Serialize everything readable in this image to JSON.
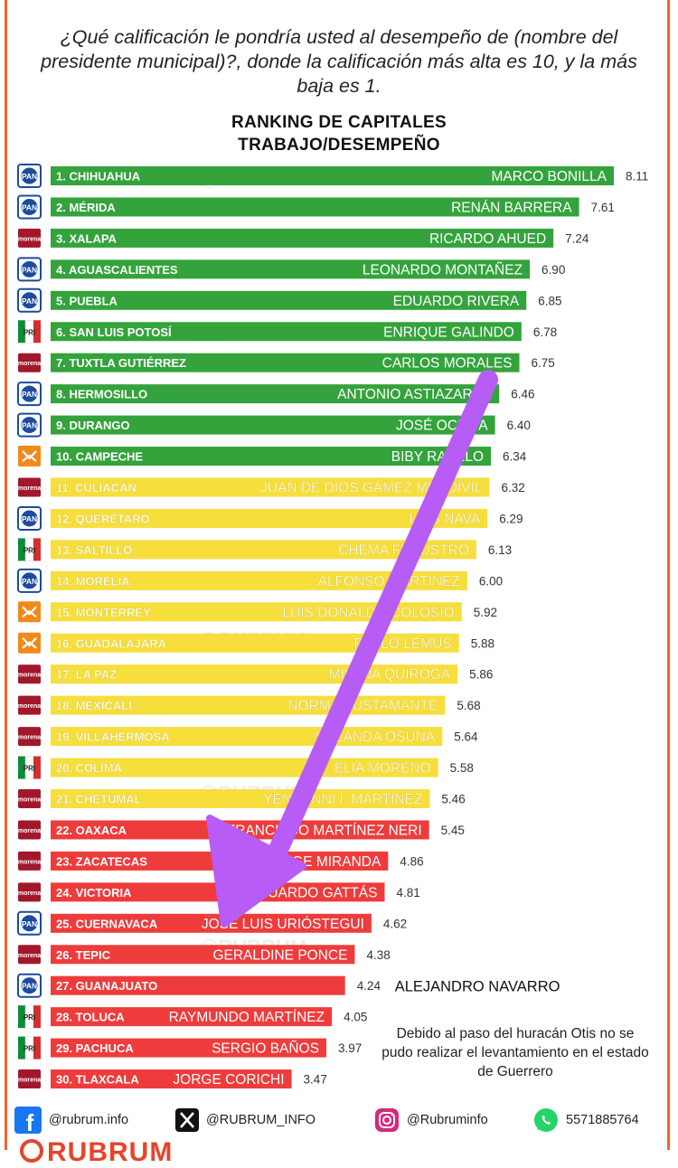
{
  "question": "¿Qué calificación le pondría usted al desempeño de (nombre del presidente municipal)?, donde la calificación más alta es 10, y la más baja es 1.",
  "title_line1": "RANKING DE CAPITALES",
  "title_line2": "TRABAJO/DESEMPEÑO",
  "outside_name_last_note": "ALEJANDRO NAVARRO",
  "note": "Debido al paso del huracán Otis no se pudo realizar el levantamiento en el estado de Guerrero",
  "watermark": "@RUBRUM",
  "colors": {
    "green": "#34a33c",
    "yellow": "#f6de3c",
    "red": "#ee3c3c",
    "frame": "#f2642a",
    "arrow": "#b75cf5",
    "PAN": "#1d4b9e",
    "MORENA": "#a3172b",
    "PRI": "#0c8c3a",
    "MC": "#f08a1c"
  },
  "footer": {
    "facebook": "@rubrum.info",
    "x": "@RUBRUM_INFO",
    "instagram": "@Rubruminfo",
    "whatsapp": "5571885764",
    "brand": "RUBRUM"
  },
  "chart_data": {
    "type": "bar",
    "orientation": "horizontal",
    "title": "RANKING DE CAPITALES TRABAJO/DESEMPEÑO",
    "categories": [
      "1. CHIHUAHUA",
      "2. MÉRIDA",
      "3. XALAPA",
      "4. AGUASCALIENTES",
      "5. PUEBLA",
      "6. SAN LUIS POTOSÍ",
      "7. TUXTLA GUTIÉRREZ",
      "8. HERMOSILLO",
      "9. DURANGO",
      "10. CAMPECHE",
      "11. CULIACÁN",
      "12. QUERÉTARO",
      "13. SALTILLO",
      "14. MORELIA",
      "15. MONTERREY",
      "16. GUADALAJARA",
      "17. LA PAZ",
      "18. MEXICALI",
      "19. VILLAHERMOSA",
      "20. COLIMA",
      "21. CHETUMAL",
      "22. OAXACA",
      "23. ZACATECAS",
      "24. VICTORIA",
      "25. CUERNAVACA",
      "26. TEPIC",
      "27. GUANAJUATO",
      "28. TOLUCA",
      "29. PACHUCA",
      "30. TLAXCALA"
    ],
    "values": [
      8.11,
      7.61,
      7.24,
      6.9,
      6.85,
      6.78,
      6.75,
      6.46,
      6.4,
      6.34,
      6.32,
      6.29,
      6.13,
      6.0,
      5.92,
      5.88,
      5.86,
      5.68,
      5.64,
      5.58,
      5.46,
      5.45,
      4.86,
      4.81,
      4.62,
      4.38,
      4.24,
      4.05,
      3.97,
      3.47
    ],
    "value_labels": [
      "8.11",
      "7.61",
      "7.24",
      "6.90",
      "6.85",
      "6.78",
      "6.75",
      "6.46",
      "6.40",
      "6.34",
      "6.32",
      "6.29",
      "6.13",
      "6.00",
      "5.92",
      "5.88",
      "5.86",
      "5.68",
      "5.64",
      "5.58",
      "5.46",
      "5.45",
      "4.86",
      "4.81",
      "4.62",
      "4.38",
      "4.24",
      "4.05",
      "3.97",
      "3.47"
    ],
    "names": [
      "MARCO BONILLA",
      "RENÁN BARRERA",
      "RICARDO AHUED",
      "LEONARDO MONTAÑEZ",
      "EDUARDO RIVERA",
      "ENRIQUE GALINDO",
      "CARLOS MORALES",
      "ANTONIO ASTIAZARÁN",
      "JOSÉ OCHOA",
      "BIBY RABELO",
      "JUAN DE DIOS GÁMEZ MENDÍVIL",
      "LUIS NAVA",
      "CHEMA FRAUSTRO",
      "ALFONSO MARTÍNEZ",
      "LUIS DONALDO COLOSIO",
      "PABLO LEMUS",
      "MILENA QUIROGA",
      "NORMA BUSTAMANTE",
      "YOLANDA OSUNA",
      "ELIA MORENO",
      "YENSUNNI I. MARTÍNEZ",
      "FRANCISCO MARTÍNEZ NERI",
      "JORGE MIRANDA",
      "EDUARDO GATTÁS",
      "JOSÉ LUIS URIÓSTEGUI",
      "GERALDINE PONCE",
      "",
      "RAYMUNDO MARTÍNEZ",
      "SERGIO BAÑOS",
      "JORGE CORICHI"
    ],
    "parties": [
      "PAN",
      "PAN",
      "MORENA",
      "PAN",
      "PAN",
      "PRI",
      "MORENA",
      "PAN",
      "PAN",
      "MC",
      "MORENA",
      "PAN",
      "PRI",
      "PAN",
      "MC",
      "MC",
      "MORENA",
      "MORENA",
      "MORENA",
      "PRI",
      "MORENA",
      "MORENA",
      "MORENA",
      "MORENA",
      "PAN",
      "MORENA",
      "PAN",
      "PRI",
      "PRI",
      "MORENA"
    ],
    "bands": [
      "green",
      "green",
      "green",
      "green",
      "green",
      "green",
      "green",
      "green",
      "green",
      "green",
      "yellow",
      "yellow",
      "yellow",
      "yellow",
      "yellow",
      "yellow",
      "yellow",
      "yellow",
      "yellow",
      "yellow",
      "yellow",
      "red",
      "red",
      "red",
      "red",
      "red",
      "red",
      "red",
      "red",
      "red"
    ],
    "party_logo_text": {
      "PAN": "PAN",
      "MORENA": "morena",
      "PRI": "PRI",
      "MC": "MC"
    },
    "xlim": [
      0,
      8.11
    ],
    "annotations": [
      "arrow from 7. TUXTLA GUTIÉRREZ toward 25. CUERNAVACA"
    ]
  }
}
